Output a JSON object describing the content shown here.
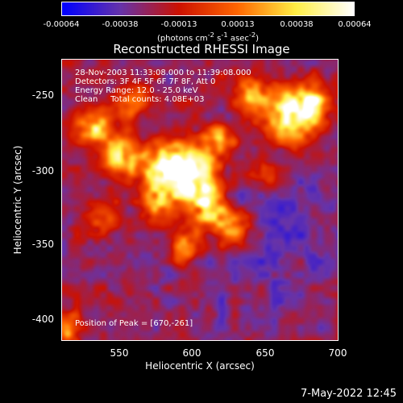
{
  "chart_data": {
    "type": "heatmap",
    "title": "Reconstructed RHESSI Image",
    "xlabel": "Heliocentric X (arcsec)",
    "ylabel": "Heliocentric Y (arcsec)",
    "xlim": [
      512,
      700
    ],
    "ylim": [
      -413,
      -223
    ],
    "xticks": [
      550,
      600,
      650,
      700
    ],
    "yticks": [
      -250,
      -300,
      -350,
      -400
    ],
    "colorbar": {
      "ticks": [
        "-0.00064",
        "-0.00038",
        "-0.00013",
        "0.00013",
        "0.00038",
        "0.00064"
      ],
      "tick_values": [
        -0.00064,
        -0.00038,
        -0.00013,
        0.00013,
        0.00038,
        0.00064
      ],
      "units_html": "(photons cm<sup>-2</sup> s<sup>-1</sup> asec<sup>-2</sup>)",
      "colors": [
        "#0000ff",
        "#6633aa",
        "#cc1100",
        "#ff6600",
        "#ffee44",
        "#ffffff"
      ]
    },
    "annotations": [
      "28-Nov-2003 11:33:08.000 to 11:39:08.000",
      "Detectors: 3F 4F 5F 6F 7F 8F, Att 0",
      "Energy Range: 12.0 - 25.0 keV",
      "Clean     Total counts: 4.08E+03"
    ],
    "peak_label": "Position of Peak = [670,-261]",
    "peak": [
      670,
      -261
    ],
    "value_range": [
      -0.00064,
      0.00064
    ]
  },
  "timestamp": "7-May-2022 12:45"
}
